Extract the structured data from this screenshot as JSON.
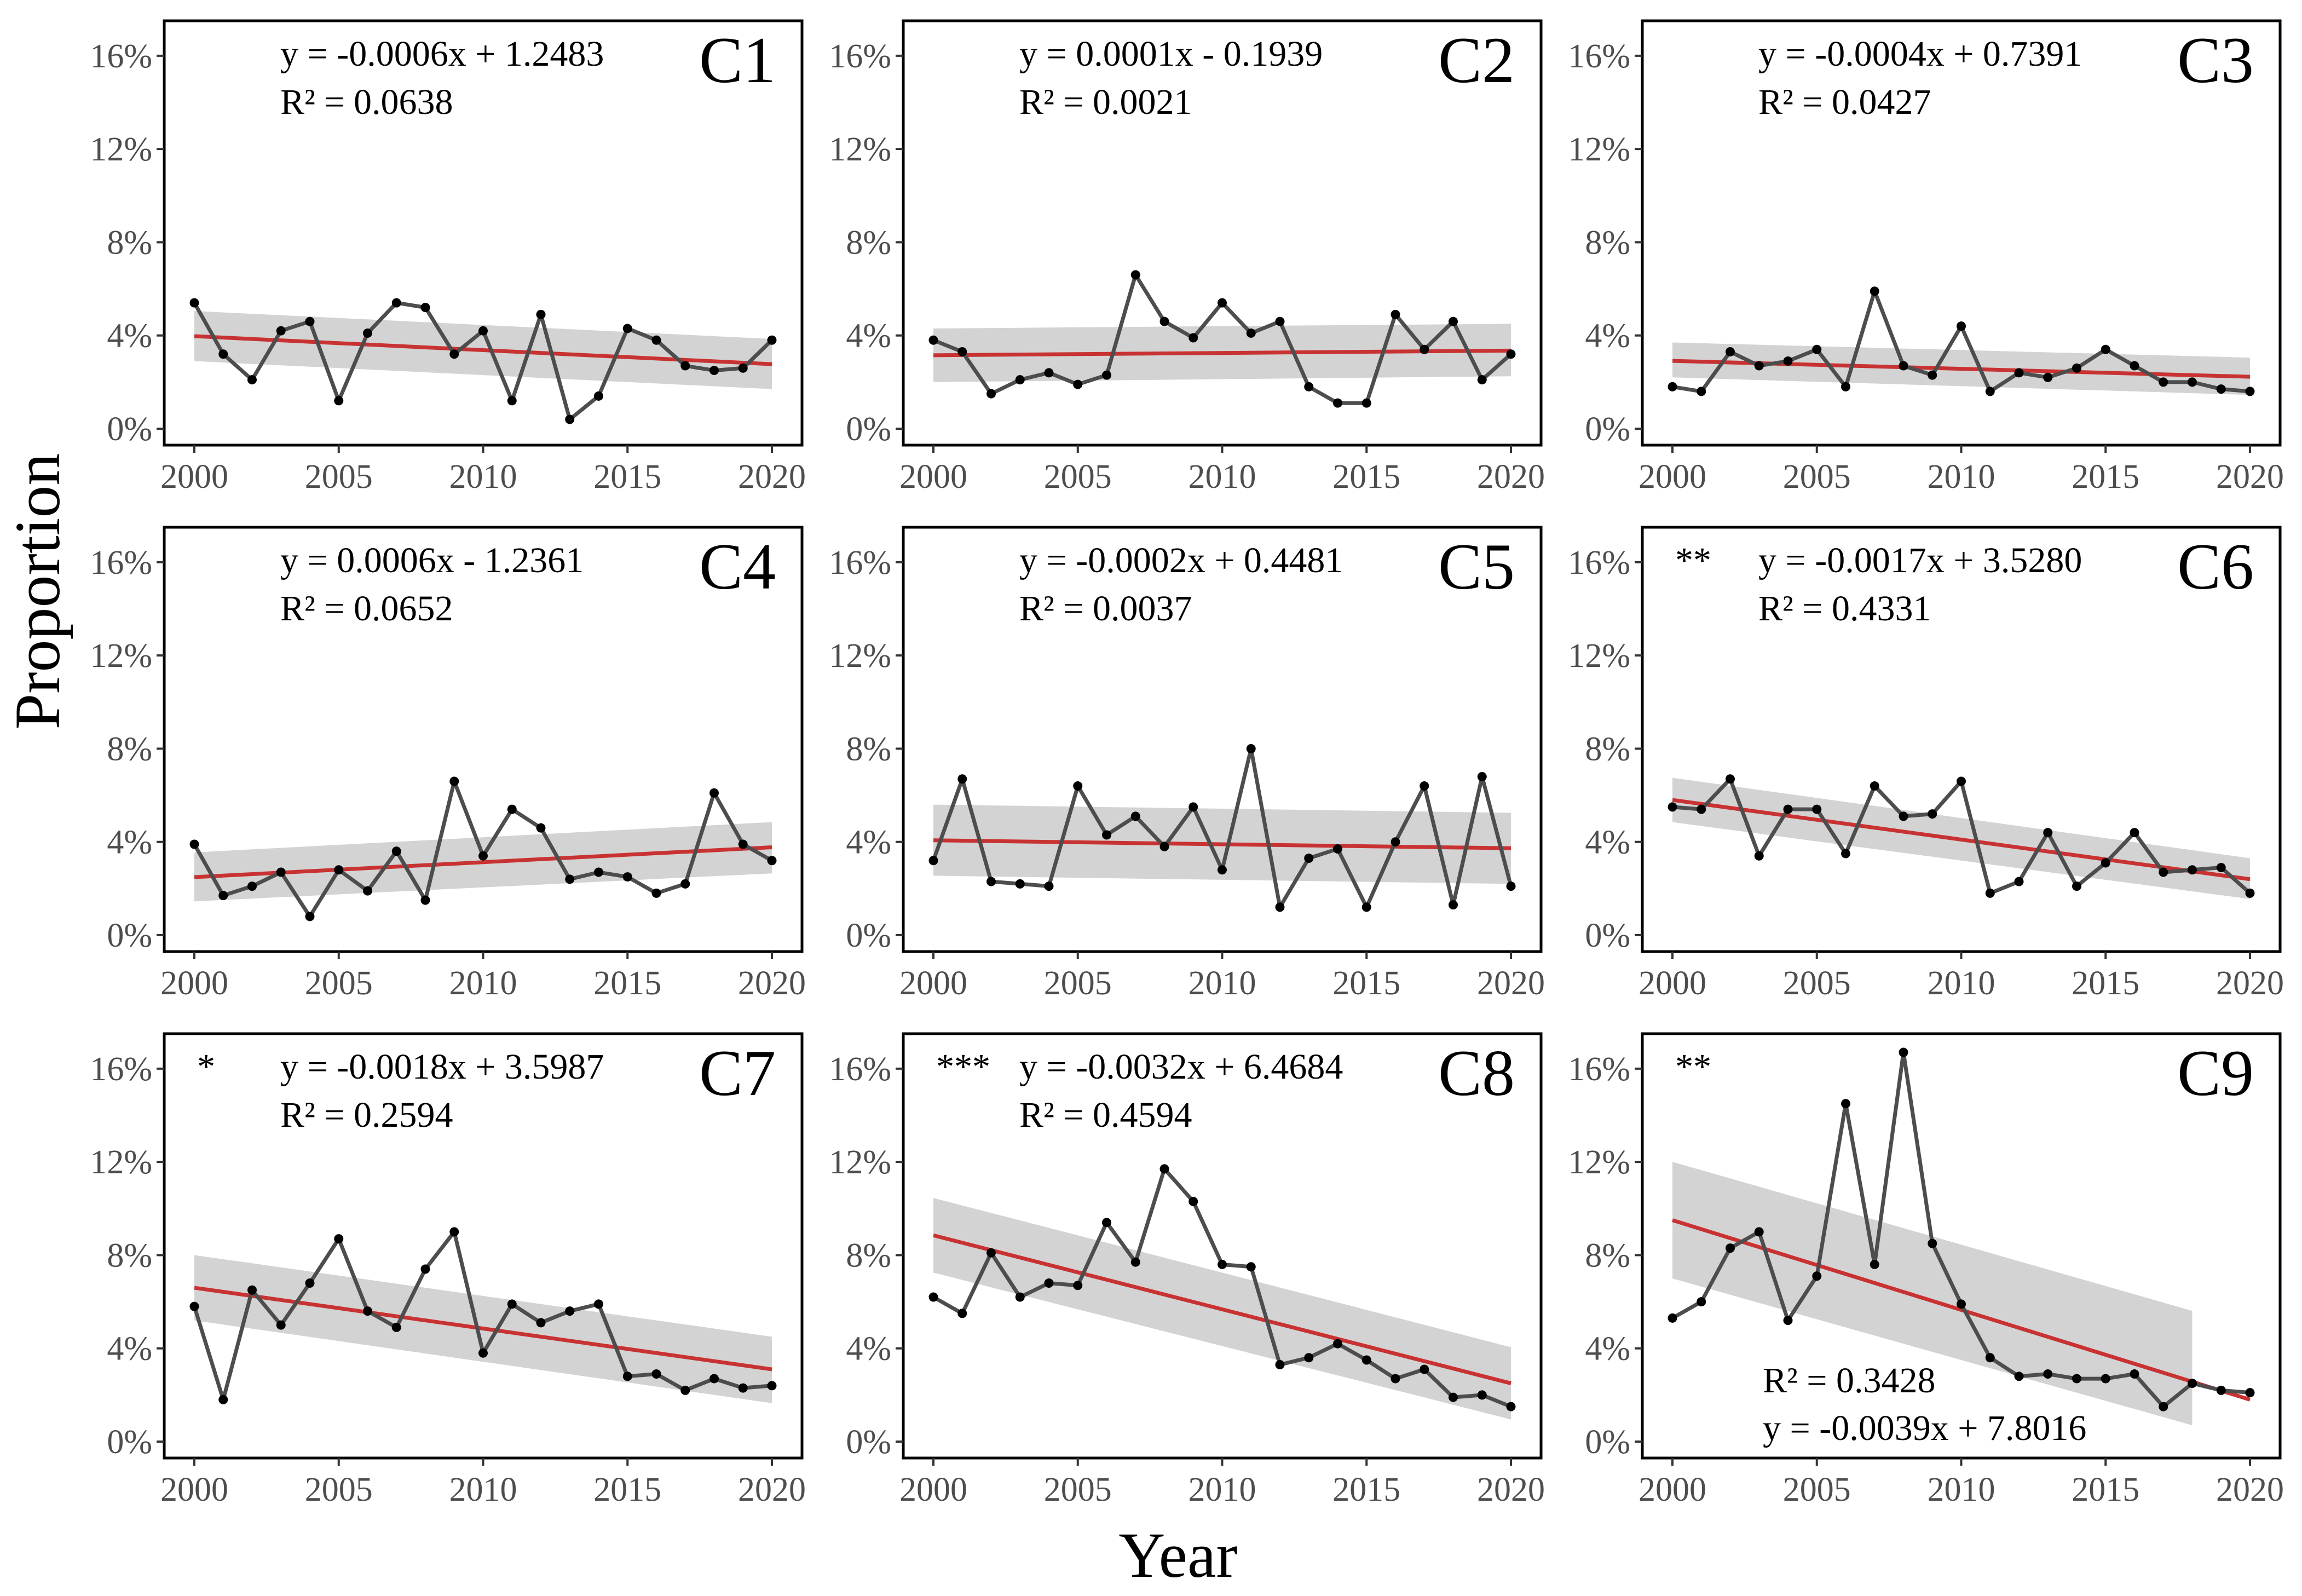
{
  "figure": {
    "xlabel": "Year",
    "ylabel": "Proportion",
    "colors": {
      "series": "#4d4d4d",
      "points": "#000000",
      "trend": "#c83232",
      "ci_band": "#d3d3d3",
      "frame": "#000000"
    }
  },
  "chart_data": [
    {
      "type": "line",
      "panel": "C1",
      "equation": "y = -0.0006x + 1.2483",
      "r2": "R² = 0.0638",
      "significance": "",
      "xlim": [
        2000,
        2020
      ],
      "ylim": [
        0,
        16
      ],
      "x_ticks": [
        "2000",
        "2005",
        "2010",
        "2015",
        "2020"
      ],
      "y_ticks": [
        "0%",
        "4%",
        "8%",
        "12%",
        "16%"
      ],
      "x": [
        2000,
        2001,
        2002,
        2003,
        2004,
        2005,
        2006,
        2007,
        2008,
        2009,
        2010,
        2011,
        2012,
        2013,
        2014,
        2015,
        2016,
        2017,
        2018,
        2019,
        2020
      ],
      "values": [
        5.4,
        3.2,
        2.1,
        4.2,
        4.6,
        1.2,
        4.1,
        5.4,
        5.2,
        3.2,
        4.2,
        1.2,
        4.9,
        0.4,
        1.4,
        4.3,
        3.8,
        2.7,
        2.5,
        2.6,
        3.8
      ],
      "trend": [
        3.97,
        2.77
      ],
      "band_lower": [
        2.9,
        1.7
      ],
      "band_upper": [
        5.05,
        3.85
      ]
    },
    {
      "type": "line",
      "panel": "C2",
      "equation": "y = 0.0001x - 0.1939",
      "r2": "R² = 0.0021",
      "significance": "",
      "xlim": [
        2000,
        2020
      ],
      "ylim": [
        0,
        16
      ],
      "x_ticks": [
        "2000",
        "2005",
        "2010",
        "2015",
        "2020"
      ],
      "y_ticks": [
        "0%",
        "4%",
        "8%",
        "12%",
        "16%"
      ],
      "x": [
        2000,
        2001,
        2002,
        2003,
        2004,
        2005,
        2006,
        2007,
        2008,
        2009,
        2010,
        2011,
        2012,
        2013,
        2014,
        2015,
        2016,
        2017,
        2018,
        2019,
        2020
      ],
      "values": [
        3.8,
        3.3,
        1.5,
        2.1,
        2.4,
        1.9,
        2.3,
        6.6,
        4.6,
        3.9,
        5.4,
        4.1,
        4.6,
        1.8,
        1.1,
        1.1,
        4.9,
        3.4,
        4.6,
        2.1,
        3.2
      ],
      "trend": [
        3.15,
        3.35
      ],
      "band_lower": [
        2.0,
        2.25
      ],
      "band_upper": [
        4.3,
        4.5
      ]
    },
    {
      "type": "line",
      "panel": "C3",
      "equation": "y = -0.0004x + 0.7391",
      "r2": "R² = 0.0427",
      "significance": "",
      "xlim": [
        2000,
        2020
      ],
      "ylim": [
        0,
        16
      ],
      "x_ticks": [
        "2000",
        "2005",
        "2010",
        "2015",
        "2020"
      ],
      "y_ticks": [
        "0%",
        "4%",
        "8%",
        "12%",
        "16%"
      ],
      "x": [
        2000,
        2001,
        2002,
        2003,
        2004,
        2005,
        2006,
        2007,
        2008,
        2009,
        2010,
        2011,
        2012,
        2013,
        2014,
        2015,
        2016,
        2017,
        2018,
        2019,
        2020
      ],
      "values": [
        1.8,
        1.6,
        3.3,
        2.7,
        2.9,
        3.4,
        1.8,
        5.9,
        2.7,
        2.3,
        4.4,
        1.6,
        2.4,
        2.2,
        2.6,
        3.4,
        2.7,
        2.0,
        2.0,
        1.7,
        1.6
      ],
      "trend": [
        2.91,
        2.23
      ],
      "band_lower": [
        2.2,
        1.45
      ],
      "band_upper": [
        3.7,
        3.05
      ]
    },
    {
      "type": "line",
      "panel": "C4",
      "equation": "y = 0.0006x - 1.2361",
      "r2": "R² = 0.0652",
      "significance": "",
      "xlim": [
        2000,
        2020
      ],
      "ylim": [
        0,
        16
      ],
      "x_ticks": [
        "2000",
        "2005",
        "2010",
        "2015",
        "2020"
      ],
      "y_ticks": [
        "0%",
        "4%",
        "8%",
        "12%",
        "16%"
      ],
      "x": [
        2000,
        2001,
        2002,
        2003,
        2004,
        2005,
        2006,
        2007,
        2008,
        2009,
        2010,
        2011,
        2012,
        2013,
        2014,
        2015,
        2016,
        2017,
        2018,
        2019,
        2020
      ],
      "values": [
        3.9,
        1.7,
        2.1,
        2.7,
        0.8,
        2.8,
        1.9,
        3.6,
        1.5,
        6.6,
        3.4,
        5.4,
        4.6,
        2.4,
        2.7,
        2.5,
        1.8,
        2.2,
        6.1,
        3.9,
        3.2
      ],
      "trend": [
        2.49,
        3.77
      ],
      "band_lower": [
        1.45,
        2.65
      ],
      "band_upper": [
        3.55,
        4.85
      ]
    },
    {
      "type": "line",
      "panel": "C5",
      "equation": "y = -0.0002x + 0.4481",
      "r2": "R² = 0.0037",
      "significance": "",
      "xlim": [
        2000,
        2020
      ],
      "ylim": [
        0,
        16
      ],
      "x_ticks": [
        "2000",
        "2005",
        "2010",
        "2015",
        "2020"
      ],
      "y_ticks": [
        "0%",
        "4%",
        "8%",
        "12%",
        "16%"
      ],
      "x": [
        2000,
        2001,
        2002,
        2003,
        2004,
        2005,
        2006,
        2007,
        2008,
        2009,
        2010,
        2011,
        2012,
        2013,
        2014,
        2015,
        2016,
        2017,
        2018,
        2019,
        2020
      ],
      "values": [
        3.2,
        6.7,
        2.3,
        2.2,
        2.1,
        6.4,
        4.3,
        5.1,
        3.8,
        5.5,
        2.8,
        8.0,
        1.2,
        3.3,
        3.7,
        1.2,
        4.0,
        6.4,
        1.3,
        6.8,
        2.1
      ],
      "trend": [
        4.07,
        3.73
      ],
      "band_lower": [
        2.55,
        2.2
      ],
      "band_upper": [
        5.6,
        5.25
      ]
    },
    {
      "type": "line",
      "panel": "C6",
      "equation": "y = -0.0017x + 3.5280",
      "r2": "R² = 0.4331",
      "significance": "**",
      "xlim": [
        2000,
        2020
      ],
      "ylim": [
        0,
        16
      ],
      "x_ticks": [
        "2000",
        "2005",
        "2010",
        "2015",
        "2020"
      ],
      "y_ticks": [
        "0%",
        "4%",
        "8%",
        "12%",
        "16%"
      ],
      "x": [
        2000,
        2001,
        2002,
        2003,
        2004,
        2005,
        2006,
        2007,
        2008,
        2009,
        2010,
        2011,
        2012,
        2013,
        2014,
        2015,
        2016,
        2017,
        2018,
        2019,
        2020
      ],
      "values": [
        5.5,
        5.4,
        6.7,
        3.4,
        5.4,
        5.4,
        3.5,
        6.4,
        5.1,
        5.2,
        6.6,
        1.8,
        2.3,
        4.4,
        2.1,
        3.1,
        4.4,
        2.7,
        2.8,
        2.9,
        1.8
      ],
      "trend": [
        5.8,
        2.4
      ],
      "band_lower": [
        4.85,
        1.55
      ],
      "band_upper": [
        6.75,
        3.3
      ]
    },
    {
      "type": "line",
      "panel": "C7",
      "equation": "y = -0.0018x + 3.5987",
      "r2": "R² = 0.2594",
      "significance": "*",
      "xlim": [
        2000,
        2020
      ],
      "ylim": [
        0,
        16
      ],
      "x_ticks": [
        "2000",
        "2005",
        "2010",
        "2015",
        "2020"
      ],
      "y_ticks": [
        "0%",
        "4%",
        "8%",
        "12%",
        "16%"
      ],
      "x": [
        2000,
        2001,
        2002,
        2003,
        2004,
        2005,
        2006,
        2007,
        2008,
        2009,
        2010,
        2011,
        2012,
        2013,
        2014,
        2015,
        2016,
        2017,
        2018,
        2019,
        2020
      ],
      "values": [
        5.8,
        1.8,
        6.5,
        5.0,
        6.8,
        8.7,
        5.6,
        4.9,
        7.4,
        9.0,
        3.8,
        5.9,
        5.1,
        5.6,
        5.9,
        2.8,
        2.9,
        2.2,
        2.7,
        2.3,
        2.4
      ],
      "trend": [
        6.6,
        3.1
      ],
      "band_lower": [
        5.2,
        1.65
      ],
      "band_upper": [
        8.0,
        4.5
      ]
    },
    {
      "type": "line",
      "panel": "C8",
      "equation": "y = -0.0032x + 6.4684",
      "r2": "R² = 0.4594",
      "significance": "***",
      "xlim": [
        2000,
        2020
      ],
      "ylim": [
        0,
        16
      ],
      "x_ticks": [
        "2000",
        "2005",
        "2010",
        "2015",
        "2020"
      ],
      "y_ticks": [
        "0%",
        "4%",
        "8%",
        "12%",
        "16%"
      ],
      "x": [
        2000,
        2001,
        2002,
        2003,
        2004,
        2005,
        2006,
        2007,
        2008,
        2009,
        2010,
        2011,
        2012,
        2013,
        2014,
        2015,
        2016,
        2017,
        2018,
        2019,
        2020
      ],
      "values": [
        6.2,
        5.5,
        8.1,
        6.2,
        6.8,
        6.7,
        9.4,
        7.7,
        11.7,
        10.3,
        7.6,
        7.5,
        3.3,
        3.6,
        4.2,
        3.5,
        2.7,
        3.1,
        1.9,
        2.0,
        1.5
      ],
      "trend": [
        8.85,
        2.5
      ],
      "band_lower": [
        7.25,
        0.95
      ],
      "band_upper": [
        10.45,
        4.05
      ]
    },
    {
      "type": "line",
      "panel": "C9",
      "equation": "y = -0.0039x + 7.8016",
      "r2": "R² = 0.3428",
      "significance": "**",
      "xlim": [
        2000,
        2020
      ],
      "ylim": [
        0,
        16
      ],
      "x_ticks": [
        "2000",
        "2005",
        "2010",
        "2015",
        "2020"
      ],
      "y_ticks": [
        "0%",
        "4%",
        "8%",
        "12%",
        "16%"
      ],
      "x": [
        2000,
        2001,
        2002,
        2003,
        2004,
        2005,
        2006,
        2007,
        2008,
        2009,
        2010,
        2011,
        2012,
        2013,
        2014,
        2015,
        2016,
        2017,
        2018,
        2019,
        2020
      ],
      "values": [
        5.3,
        6.0,
        8.3,
        9.0,
        5.2,
        7.1,
        14.5,
        7.6,
        16.7,
        8.5,
        5.9,
        3.6,
        2.8,
        2.9,
        2.7,
        2.7,
        2.9,
        1.5,
        2.5,
        2.2,
        2.1
      ],
      "trend": [
        9.5,
        1.8
      ],
      "band_lower": [
        7.0,
        0.0
      ],
      "band_upper": [
        12.0,
        4.9
      ],
      "band_end_x": 2018
    }
  ]
}
